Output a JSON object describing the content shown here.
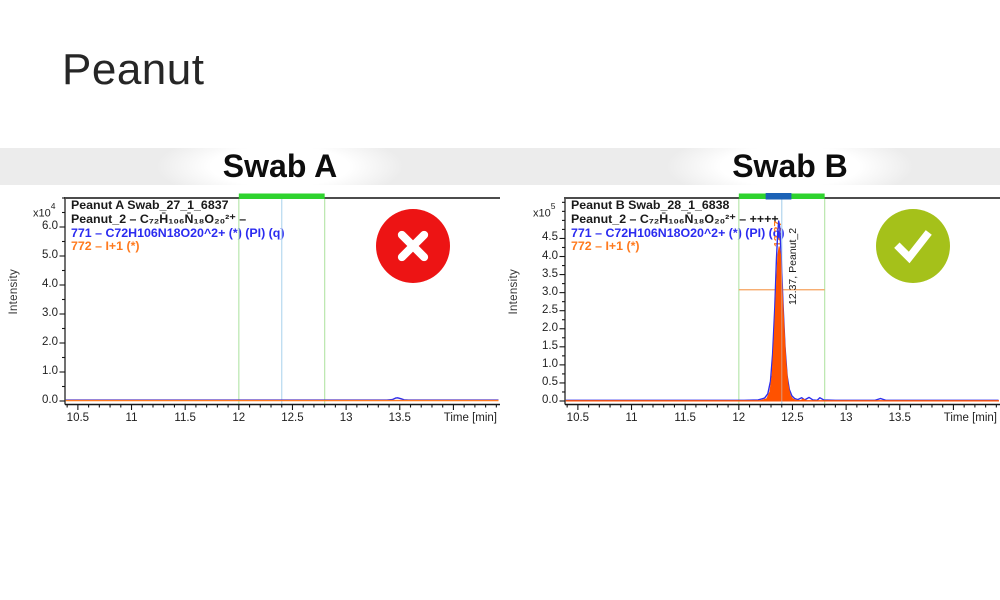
{
  "title": "Peanut",
  "colors": {
    "trace_blue": "#2d2deb",
    "trace_orange_fill": "#ff5200",
    "legend_orange": "#ff7a1e",
    "roi_green": "#2ed32e",
    "qualifier_blue": "#1b62b6",
    "window_line_green": "#b9e6ad",
    "rt_line_blue": "#b6d8ef",
    "threshold_orange": "#f6a25e",
    "fail_red": "#ed1414",
    "pass_green": "#a5c11a",
    "band_gray": "#ececec"
  },
  "panels": [
    {
      "header": "Swab A",
      "y_scale_base": "x10",
      "y_scale_exp": "4",
      "y_axis_label": "Intensity",
      "x_axis_label": "Time [min]",
      "legend": {
        "line1": "Peanut A Swab_27_1_6837",
        "line2": "Peanut_2 – C₇₂H̄₁₀₆N̄₁₈O₂₀²⁺ –",
        "line3": "771 – C72H106N18O20^2+ (*) (PI) (q)",
        "line4": "772 – I+1 (*)"
      },
      "status": {
        "result": "fail",
        "icon": "cross-in-red-circle",
        "color": "#ed1414"
      }
    },
    {
      "header": "Swab B",
      "y_scale_base": "x10",
      "y_scale_exp": "5",
      "y_axis_label": "Intensity",
      "x_axis_label": "Time [min]",
      "legend": {
        "line1": "Peanut B Swab_28_1_6838",
        "line2": "Peanut_2 – C₇₂H̄₁₀₆N̄₁₈O₂₀²⁺ – ++++",
        "line3": "771 – C72H106N18O20^2+ (*) (PI) (q)",
        "line4": "772 – I+1 (*)"
      },
      "status": {
        "result": "pass",
        "icon": "check-in-green-circle",
        "color": "#a5c11a"
      }
    }
  ],
  "chart_data": [
    {
      "type": "line",
      "title": "Peanut A Swab_27_1_6837",
      "xlabel": "Time [min]",
      "ylabel": "Intensity",
      "y_scale": "x10^4",
      "xlim": [
        10.38,
        14.43
      ],
      "ylim": [
        0,
        7.0
      ],
      "x_ticks": [
        {
          "v": 10.5,
          "label": "10.5"
        },
        {
          "v": 11,
          "label": "11"
        },
        {
          "v": 11.5,
          "label": "11.5"
        },
        {
          "v": 12,
          "label": "12"
        },
        {
          "v": 12.5,
          "label": "12.5"
        },
        {
          "v": 13,
          "label": "13"
        },
        {
          "v": 13.5,
          "label": "13.5"
        }
      ],
      "x_minor_step": 0.1,
      "y_ticks": [
        {
          "v": 0,
          "label": "0.0"
        },
        {
          "v": 1,
          "label": "1.0"
        },
        {
          "v": 2,
          "label": "2.0"
        },
        {
          "v": 3,
          "label": "3.0"
        },
        {
          "v": 4,
          "label": "4.0"
        },
        {
          "v": 5,
          "label": "5.0"
        },
        {
          "v": 6,
          "label": "6.0"
        }
      ],
      "y_minor_step": 0.5,
      "roi_window": {
        "start": 12.0,
        "end": 12.8,
        "bar_color": "#2ed32e",
        "line_color": "#b9e6ad"
      },
      "expected_rt_line": {
        "x": 12.4,
        "color": "#b6d8ef"
      },
      "series": [
        {
          "name": "771 - C72H106N18O20^2+ (quantifier)",
          "color": "#2d2deb",
          "fill": false,
          "points": [
            [
              10.38,
              0.03
            ],
            [
              13.38,
              0.03
            ],
            [
              13.43,
              0.05
            ],
            [
              13.46,
              0.1
            ],
            [
              13.48,
              0.11
            ],
            [
              13.51,
              0.08
            ],
            [
              13.54,
              0.04
            ],
            [
              13.58,
              0.03
            ],
            [
              14.42,
              0.03
            ]
          ]
        },
        {
          "name": "772 - I+1 (qualifier)",
          "color": "#ff7a1e",
          "fill": false,
          "points": [
            [
              10.38,
              0.015
            ],
            [
              14.42,
              0.015
            ]
          ]
        }
      ]
    },
    {
      "type": "line",
      "title": "Peanut B Swab_28_1_6838",
      "xlabel": "Time [min]",
      "ylabel": "Intensity",
      "y_scale": "x10^5",
      "xlim": [
        10.38,
        14.43
      ],
      "ylim": [
        0,
        5.62
      ],
      "x_ticks": [
        {
          "v": 10.5,
          "label": "10.5"
        },
        {
          "v": 11,
          "label": "11"
        },
        {
          "v": 11.5,
          "label": "11.5"
        },
        {
          "v": 12,
          "label": "12"
        },
        {
          "v": 12.5,
          "label": "12.5"
        },
        {
          "v": 13,
          "label": "13"
        },
        {
          "v": 13.5,
          "label": "13.5"
        }
      ],
      "x_minor_step": 0.1,
      "y_ticks": [
        {
          "v": 0,
          "label": "0.0"
        },
        {
          "v": 0.5,
          "label": "0.5"
        },
        {
          "v": 1,
          "label": "1.0"
        },
        {
          "v": 1.5,
          "label": "1.5"
        },
        {
          "v": 2,
          "label": "2.0"
        },
        {
          "v": 2.5,
          "label": "2.5"
        },
        {
          "v": 3,
          "label": "3.0"
        },
        {
          "v": 3.5,
          "label": "3.5"
        },
        {
          "v": 4,
          "label": "4.0"
        },
        {
          "v": 4.5,
          "label": "4.5"
        }
      ],
      "y_minor_step": 0.25,
      "roi_window": {
        "start": 12.0,
        "end": 12.8,
        "bar_color": "#2ed32e",
        "line_color": "#b9e6ad"
      },
      "qualifier_bar": {
        "start": 12.25,
        "end": 12.49,
        "color": "#1b62b6"
      },
      "expected_rt_line": {
        "x": 12.4,
        "color": "#b6d8ef"
      },
      "threshold_line": {
        "y": 3.08,
        "start": 12.0,
        "end": 12.8,
        "color": "#f6a25e"
      },
      "peak": {
        "rt": 12.37,
        "rt_label": "12.37",
        "label": "12.37, Peanut_2",
        "apex_quantifier": 4.98,
        "apex_qualifier": 4.28
      },
      "series": [
        {
          "name": "771 - C72H106N18O20^2+ (quantifier)",
          "color": "#2d2deb",
          "fill": false,
          "points": [
            [
              10.38,
              0.02
            ],
            [
              12.05,
              0.02
            ],
            [
              12.18,
              0.03
            ],
            [
              12.24,
              0.08
            ],
            [
              12.27,
              0.2
            ],
            [
              12.295,
              0.55
            ],
            [
              12.315,
              1.3
            ],
            [
              12.335,
              2.6
            ],
            [
              12.35,
              3.9
            ],
            [
              12.362,
              4.65
            ],
            [
              12.372,
              4.98
            ],
            [
              12.382,
              4.8
            ],
            [
              12.395,
              4.0
            ],
            [
              12.412,
              2.7
            ],
            [
              12.43,
              1.5
            ],
            [
              12.45,
              0.7
            ],
            [
              12.47,
              0.32
            ],
            [
              12.495,
              0.14
            ],
            [
              12.52,
              0.07
            ],
            [
              12.55,
              0.04
            ],
            [
              12.585,
              0.09
            ],
            [
              12.615,
              0.03
            ],
            [
              12.655,
              0.1
            ],
            [
              12.69,
              0.03
            ],
            [
              12.73,
              0.02
            ],
            [
              12.755,
              0.09
            ],
            [
              12.79,
              0.03
            ],
            [
              12.9,
              0.02
            ],
            [
              13.27,
              0.02
            ],
            [
              13.32,
              0.07
            ],
            [
              13.37,
              0.02
            ],
            [
              14.42,
              0.02
            ]
          ]
        },
        {
          "name": "772 - I+1 (qualifier)",
          "color": "#ff5200",
          "fill": true,
          "points": [
            [
              10.38,
              0.01
            ],
            [
              12.2,
              0.01
            ],
            [
              12.26,
              0.06
            ],
            [
              12.29,
              0.25
            ],
            [
              12.31,
              0.7
            ],
            [
              12.33,
              1.7
            ],
            [
              12.35,
              3.1
            ],
            [
              12.363,
              4.0
            ],
            [
              12.375,
              4.28
            ],
            [
              12.388,
              4.05
            ],
            [
              12.4,
              3.3
            ],
            [
              12.418,
              2.2
            ],
            [
              12.438,
              1.1
            ],
            [
              12.458,
              0.45
            ],
            [
              12.478,
              0.16
            ],
            [
              12.5,
              0.06
            ],
            [
              12.53,
              0.02
            ],
            [
              12.575,
              0.01
            ],
            [
              12.6,
              0.05
            ],
            [
              12.63,
              0.01
            ],
            [
              14.42,
              0.01
            ]
          ]
        }
      ]
    }
  ]
}
